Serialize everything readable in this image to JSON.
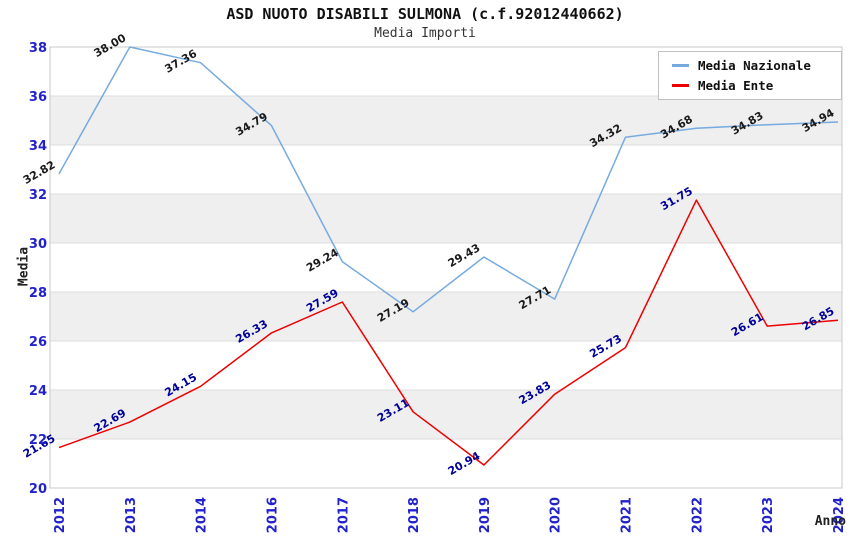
{
  "chart_data": {
    "type": "line",
    "title": "ASD NUOTO DISABILI SULMONA (c.f.92012440662)",
    "subtitle": "Media Importi",
    "xlabel": "Anno",
    "ylabel": "Media",
    "categories": [
      "2012",
      "2013",
      "2014",
      "2016",
      "2017",
      "2018",
      "2019",
      "2020",
      "2021",
      "2022",
      "2023",
      "2024"
    ],
    "series": [
      {
        "name": "Media Nazionale",
        "color": "#77aade",
        "label_color": "#1a1a1a",
        "values": [
          32.82,
          38.0,
          37.36,
          34.79,
          29.24,
          27.19,
          29.43,
          27.71,
          34.32,
          34.68,
          34.83,
          34.94
        ]
      },
      {
        "name": "Media Ente",
        "color": "#ee0000",
        "label_color": "#000099",
        "values": [
          21.65,
          22.69,
          24.15,
          26.33,
          27.59,
          23.11,
          20.94,
          23.83,
          25.73,
          31.75,
          26.61,
          26.85
        ]
      }
    ],
    "ylim": [
      20,
      38
    ],
    "ytick_step": 2,
    "yticks": [
      20,
      22,
      24,
      26,
      28,
      30,
      32,
      34,
      36,
      38
    ],
    "tick_label_color": "#2222cc",
    "band_fill": "#efefef",
    "grid_color": "#dcdcdc",
    "border_color": "#c8c8c8",
    "legend_position": "top-right",
    "grid": "horizontal-bands",
    "value_label_format": "2-decimals",
    "value_label_rotation_deg": -30
  }
}
